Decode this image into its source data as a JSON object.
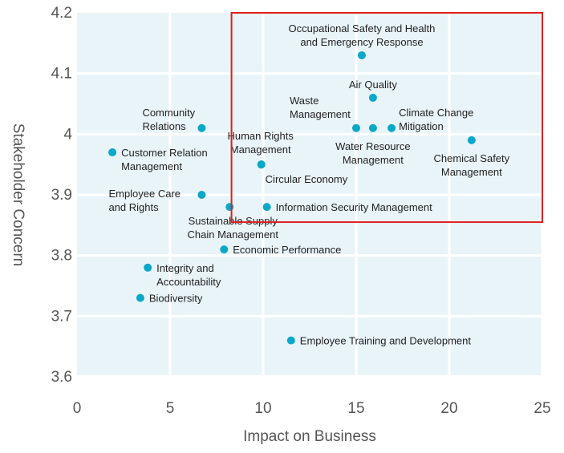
{
  "chart_data": {
    "type": "scatter",
    "title": "",
    "xlabel": "Impact on Business",
    "ylabel": "Stakeholder Concern",
    "xlim": [
      0,
      25
    ],
    "ylim": [
      3.6,
      4.2
    ],
    "x_ticks": [
      "0",
      "5",
      "10",
      "15",
      "20",
      "25"
    ],
    "x_tick_values": [
      0,
      5,
      10,
      15,
      20,
      25
    ],
    "y_ticks": [
      "3.6",
      "3.7",
      "3.8",
      "3.9",
      "4",
      "4.1",
      "4.2"
    ],
    "y_tick_values": [
      3.6,
      3.7,
      3.8,
      3.9,
      4.0,
      4.1,
      4.2
    ],
    "grid": true,
    "colors": {
      "panel": "#e9f4f9",
      "grid": "#ffffff",
      "point": "#0aa8c8",
      "highlight_box": "#e02020"
    },
    "highlight_region": {
      "x": [
        8.3,
        25
      ],
      "y": [
        3.855,
        4.2
      ]
    },
    "points": [
      {
        "label": "Occupational Safety and Health\nand Emergency Response",
        "x": 15.3,
        "y": 4.13,
        "pos": "above-center"
      },
      {
        "label": "Air Quality",
        "x": 15.9,
        "y": 4.06,
        "pos": "above-center"
      },
      {
        "label": "Waste\nManagement",
        "x": 15.0,
        "y": 4.01,
        "pos": "upper-left"
      },
      {
        "label": "Water Resource\nManagement",
        "x": 15.9,
        "y": 4.01,
        "pos": "below-center"
      },
      {
        "label": "Climate Change\nMitigation",
        "x": 16.9,
        "y": 4.01,
        "pos": "upper-right"
      },
      {
        "label": "Chemical Safety\nManagement",
        "x": 21.2,
        "y": 3.99,
        "pos": "below-center"
      },
      {
        "label": "Community\nRelations",
        "x": 6.7,
        "y": 4.01,
        "pos": "upper-left"
      },
      {
        "label": "Customer Relation\nManagement",
        "x": 1.9,
        "y": 3.97,
        "pos": "right"
      },
      {
        "label": "Human Rights\nManagement",
        "x": 9.9,
        "y": 3.95,
        "pos": "above-center"
      },
      {
        "label": "Circular Economy",
        "x": 9.9,
        "y": 3.95,
        "pos": "below-right"
      },
      {
        "label": "Employee Care\nand Rights",
        "x": 6.7,
        "y": 3.9,
        "pos": "left"
      },
      {
        "label": "Sustainable Supply\nChain Management",
        "x": 8.2,
        "y": 3.88,
        "pos": "below-center"
      },
      {
        "label": "Information Security Management",
        "x": 10.2,
        "y": 3.88,
        "pos": "right"
      },
      {
        "label": "Economic Performance",
        "x": 7.9,
        "y": 3.81,
        "pos": "right"
      },
      {
        "label": "Integrity and\nAccountability",
        "x": 3.8,
        "y": 3.78,
        "pos": "right"
      },
      {
        "label": "Biodiversity",
        "x": 3.4,
        "y": 3.73,
        "pos": "right"
      },
      {
        "label": "Employee Training and Development",
        "x": 11.5,
        "y": 3.66,
        "pos": "right"
      }
    ]
  }
}
